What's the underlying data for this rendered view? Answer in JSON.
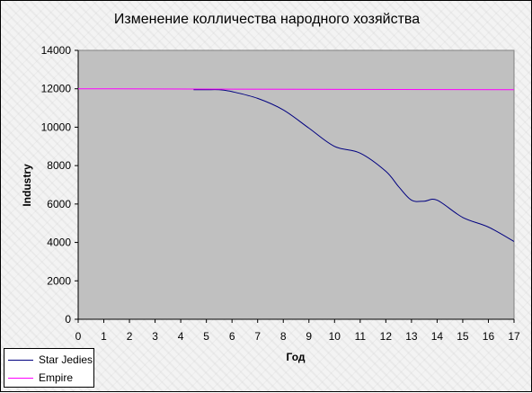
{
  "colors": {
    "plot_background": "#c0c0c0",
    "series_star_jedies": "#000080",
    "series_empire": "#ff00ff"
  },
  "chart_data": {
    "type": "line",
    "title": "Изменение колличества народного хозяйства",
    "xlabel": "Год",
    "ylabel": "Industry",
    "xlim": [
      0,
      17
    ],
    "ylim": [
      0,
      14000
    ],
    "x_ticks": [
      "0",
      "1",
      "2",
      "3",
      "4",
      "5",
      "6",
      "7",
      "8",
      "9",
      "10",
      "11",
      "12",
      "13",
      "14",
      "15",
      "16",
      "17"
    ],
    "y_ticks": [
      "0",
      "2000",
      "4000",
      "6000",
      "8000",
      "10000",
      "12000",
      "14000"
    ],
    "grid": {
      "major_y": false,
      "major_x": false
    },
    "legend_position": "bottom-left",
    "series": [
      {
        "name": "Star Jedies",
        "color": "#000080",
        "points": [
          [
            4.5,
            11950
          ],
          [
            5,
            11950
          ],
          [
            5.5,
            11950
          ],
          [
            6,
            11850
          ],
          [
            7,
            11500
          ],
          [
            8,
            10900
          ],
          [
            9,
            9950
          ],
          [
            10,
            9000
          ],
          [
            11,
            8650
          ],
          [
            12,
            7700
          ],
          [
            12.5,
            6900
          ],
          [
            13,
            6200
          ],
          [
            13.5,
            6150
          ],
          [
            14,
            6200
          ],
          [
            15,
            5300
          ],
          [
            16,
            4800
          ],
          [
            17,
            4050
          ]
        ]
      },
      {
        "name": "Empire",
        "color": "#ff00ff",
        "points": [
          [
            0,
            12000
          ],
          [
            17,
            11950
          ]
        ]
      }
    ]
  }
}
